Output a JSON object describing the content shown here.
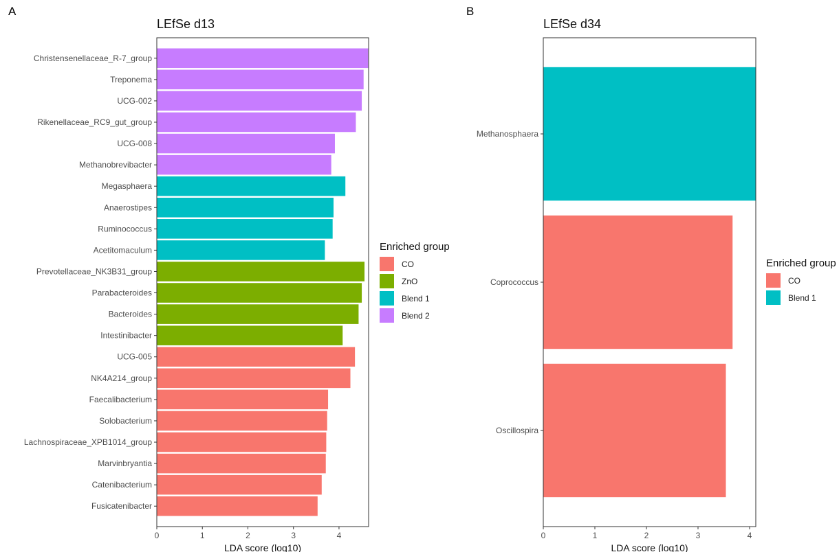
{
  "colors": {
    "CO": "#F8766D",
    "ZnO": "#7CAE00",
    "Blend 1": "#00BFC4",
    "Blend 2": "#C77CFF"
  },
  "chart_data": [
    {
      "panel": "A",
      "type": "bar",
      "orientation": "horizontal",
      "title": "LEfSe d13",
      "xlabel": "LDA score (log10)",
      "ylabel": "",
      "xlim": [
        0,
        4.65
      ],
      "xticks": [
        0,
        1,
        2,
        3,
        4
      ],
      "legend_title": "Enriched group",
      "legend_entries": [
        "CO",
        "ZnO",
        "Blend 1",
        "Blend 2"
      ],
      "legend_position": "right",
      "categories": [
        "Christensenellaceae_R-7_group",
        "Treponema",
        "UCG-002",
        "Rikenellaceae_RC9_gut_group",
        "UCG-008",
        "Methanobrevibacter",
        "Megasphaera",
        "Anaerostipes",
        "Ruminococcus",
        "Acetitomaculum",
        "Prevotellaceae_NK3B31_group",
        "Parabacteroides",
        "Bacteroides",
        "Intestinibacter",
        "UCG-005",
        "NK4A214_group",
        "Faecalibacterium",
        "Solobacterium",
        "Lachnospiraceae_XPB1014_group",
        "Marvinbryantia",
        "Catenibacterium",
        "Fusicatenibacter"
      ],
      "values": [
        4.64,
        4.54,
        4.5,
        4.37,
        3.91,
        3.83,
        4.14,
        3.88,
        3.86,
        3.69,
        4.56,
        4.5,
        4.43,
        4.08,
        4.35,
        4.25,
        3.76,
        3.74,
        3.72,
        3.71,
        3.62,
        3.53
      ],
      "groups": [
        "Blend 2",
        "Blend 2",
        "Blend 2",
        "Blend 2",
        "Blend 2",
        "Blend 2",
        "Blend 1",
        "Blend 1",
        "Blend 1",
        "Blend 1",
        "ZnO",
        "ZnO",
        "ZnO",
        "ZnO",
        "CO",
        "CO",
        "CO",
        "CO",
        "CO",
        "CO",
        "CO",
        "CO"
      ]
    },
    {
      "panel": "B",
      "type": "bar",
      "orientation": "horizontal",
      "title": "LEfSe d34",
      "xlabel": "LDA score (log10)",
      "ylabel": "",
      "xlim": [
        0,
        4.12
      ],
      "xticks": [
        0,
        1,
        2,
        3,
        4
      ],
      "legend_title": "Enriched group",
      "legend_entries": [
        "CO",
        "Blend 1"
      ],
      "legend_position": "right",
      "categories": [
        "Methanosphaera",
        "Coprococcus",
        "Oscillospira"
      ],
      "values": [
        4.12,
        3.67,
        3.54
      ],
      "groups": [
        "Blend 1",
        "CO",
        "CO"
      ]
    }
  ]
}
